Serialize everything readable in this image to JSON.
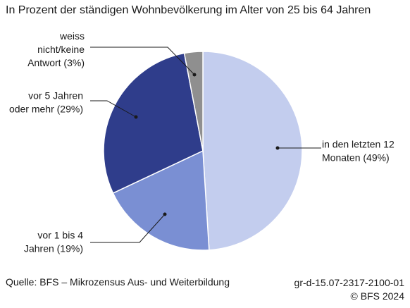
{
  "title": "In Prozent der ständigen Wohnbevölkerung im Alter von 25 bis 64 Jahren",
  "footer": {
    "source": "Quelle: BFS – Mikrozensus Aus- und Weiterbildung",
    "code": "gr-d-15.07-2317-2100-01",
    "copyright": "© BFS 2024"
  },
  "chart_data": {
    "type": "pie",
    "title": "In Prozent der ständigen Wohnbevölkerung im Alter von 25 bis 64 Jahren",
    "start": "12 o'clock, clockwise",
    "slices": [
      {
        "label_lines": [
          "in den letzten 12",
          "Monaten (49%)"
        ],
        "value": 49,
        "color": "#c3cdee"
      },
      {
        "label_lines": [
          "vor 1 bis 4",
          "Jahren (19%)"
        ],
        "value": 19,
        "color": "#7a8fd3"
      },
      {
        "label_lines": [
          "vor 5 Jahren",
          "oder mehr (29%)"
        ],
        "value": 29,
        "color": "#2f3d8b"
      },
      {
        "label_lines": [
          "weiss",
          "nicht/keine",
          "Antwort (3%)"
        ],
        "value": 3,
        "color": "#8f8f8f"
      }
    ]
  }
}
